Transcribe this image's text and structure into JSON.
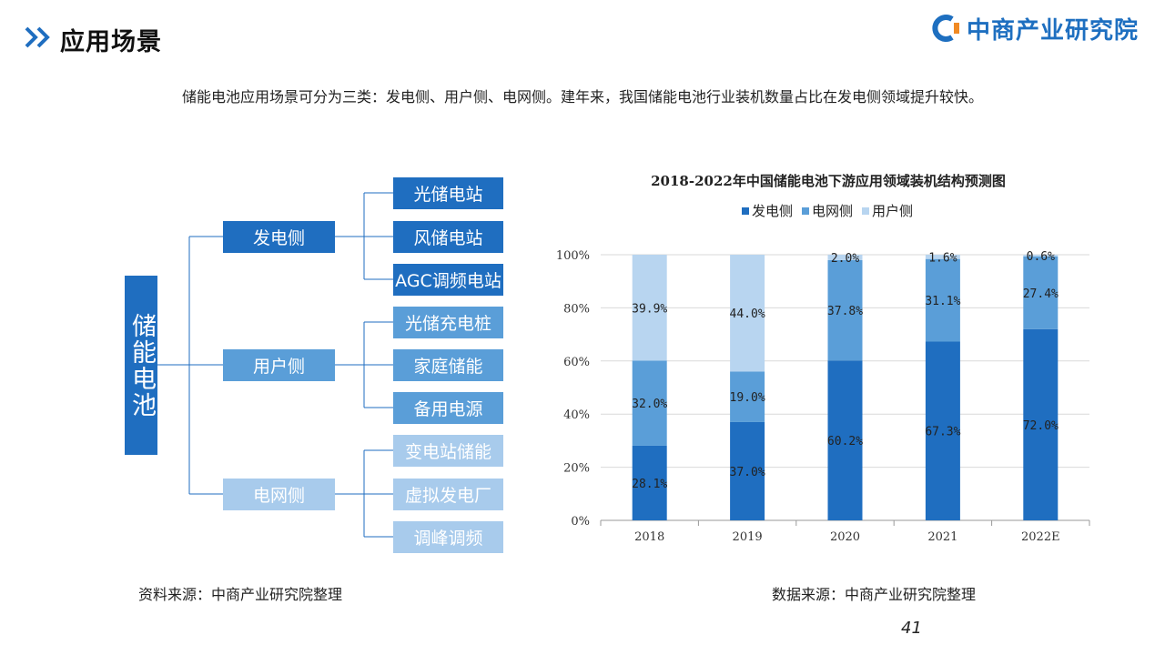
{
  "header": {
    "title": "应用场景",
    "logo_text": "中商产业研究院"
  },
  "intro": "储能电池应用场景可分为三类：发电侧、用户侧、电网侧。建年来，我国储能电池行业装机数量占比在发电侧领域提升较快。",
  "tree": {
    "root": "储能电池",
    "branches": [
      {
        "label": "发电侧",
        "leaves": [
          "光储电站",
          "风储电站",
          "AGC调频电站"
        ]
      },
      {
        "label": "用户侧",
        "leaves": [
          "光储充电桩",
          "家庭储能",
          "备用电源"
        ]
      },
      {
        "label": "电网侧",
        "leaves": [
          "变电站储能",
          "虚拟发电厂",
          "调峰调频"
        ]
      }
    ],
    "colors": [
      "#1f6ec0",
      "#5a9ed8",
      "#a8cbec"
    ]
  },
  "left_source": "资料来源：中商产业研究院整理",
  "right_source": "数据来源：中商产业研究院整理",
  "page_number": "41",
  "chart_data": {
    "type": "bar",
    "stacked": true,
    "title": "2018-2022年中国储能电池下游应用领域装机结构预测图",
    "categories": [
      "2018",
      "2019",
      "2020",
      "2021",
      "2022E"
    ],
    "series": [
      {
        "name": "发电侧",
        "values": [
          28.1,
          37.0,
          60.2,
          67.3,
          72.0
        ],
        "labels": [
          "28.1%",
          "37.0%",
          "60.2%",
          "67.3%",
          "72.0%"
        ],
        "color": "#1f6ec0"
      },
      {
        "name": "电网侧",
        "values": [
          32.0,
          19.0,
          37.8,
          31.1,
          27.4
        ],
        "labels": [
          "32.0%",
          "19.0%",
          "37.8%",
          "31.1%",
          "27.4%"
        ],
        "color": "#5a9ed8"
      },
      {
        "name": "用户侧",
        "values": [
          39.9,
          44.0,
          2.0,
          1.6,
          0.6
        ],
        "labels": [
          "39.9%",
          "44.0%",
          "2.0%",
          "1.6%",
          "0.6%"
        ],
        "color": "#b8d5f0"
      }
    ],
    "ylim": [
      0,
      100
    ],
    "yticks": [
      "0%",
      "20%",
      "40%",
      "60%",
      "80%",
      "100%"
    ],
    "grid": true,
    "legend_position": "top"
  }
}
